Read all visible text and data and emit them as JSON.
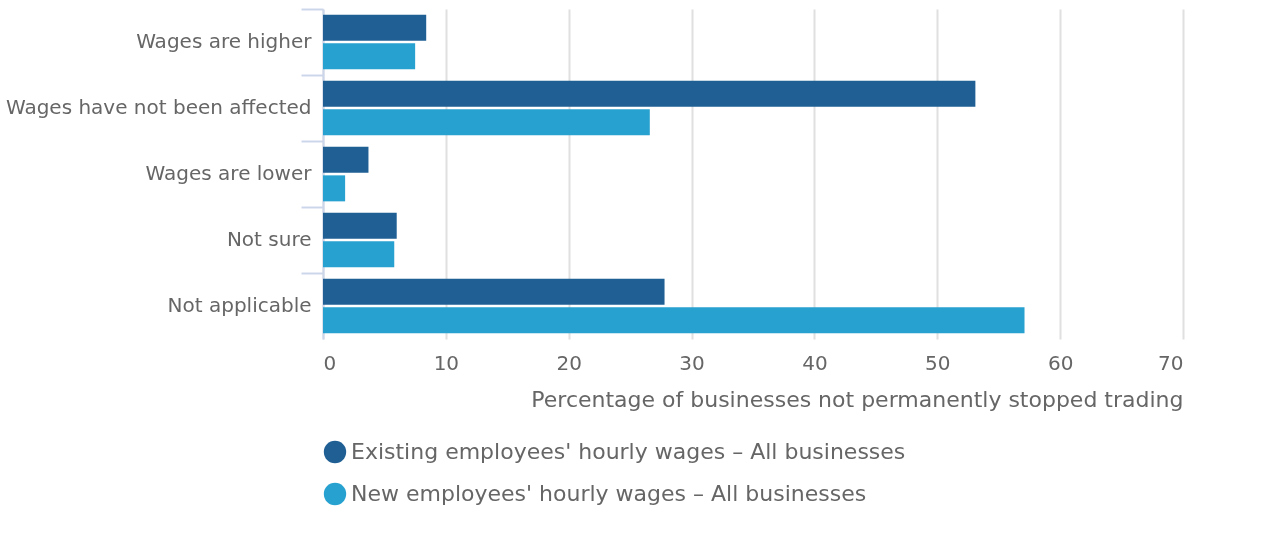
{
  "chart_data": {
    "type": "bar",
    "orientation": "horizontal",
    "categories": [
      "Wages are higher",
      "Wages have not been affected",
      "Wages are lower",
      "Not sure",
      "Not applicable"
    ],
    "series": [
      {
        "name": "Existing employees' hourly wages – All businesses",
        "color": "#1f5f94",
        "values": [
          8.4,
          53.1,
          3.7,
          6.0,
          27.8
        ]
      },
      {
        "name": "New employees' hourly wages – All businesses",
        "color": "#27a1cf",
        "values": [
          7.5,
          26.6,
          1.8,
          5.8,
          57.1
        ]
      }
    ],
    "xlabel": "Percentage of businesses not permanently stopped trading",
    "xlim": [
      0,
      70
    ],
    "xticks": [
      0,
      10,
      20,
      30,
      40,
      50,
      60,
      70
    ],
    "grid": "x",
    "legend": "bottom"
  }
}
